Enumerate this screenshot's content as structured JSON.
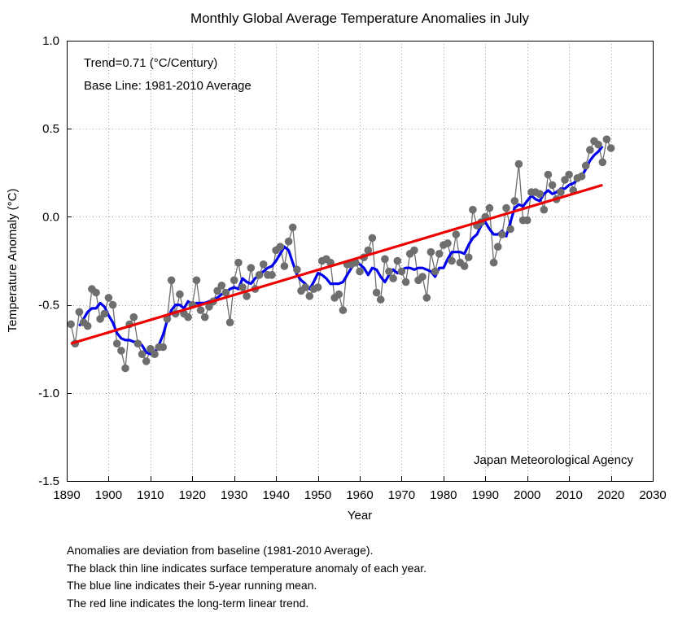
{
  "colors": {
    "annual_points": "#6e6e6e",
    "running_mean": "#0000ee",
    "trend": "#ee0000",
    "grid": "#a0a0a0"
  },
  "notes": [
    "Anomalies are deviation from baseline (1981-2010 Average).",
    "The black thin line indicates surface temperature anomaly of each year.",
    "The blue line indicates their 5-year running mean.",
    "The red line indicates the long-term linear trend."
  ],
  "chart_data": {
    "type": "line",
    "title": "Monthly Global Average Temperature Anomalies in July",
    "xlabel": "Year",
    "ylabel": "Temperature Anomaly (°C)",
    "xlim": [
      1890,
      2030
    ],
    "ylim": [
      -1.5,
      1.0
    ],
    "xticks": [
      1890,
      1900,
      1910,
      1920,
      1930,
      1940,
      1950,
      1960,
      1970,
      1980,
      1990,
      2000,
      2010,
      2020,
      2030
    ],
    "yticks": [
      -1.5,
      -1.0,
      -0.5,
      0.0,
      0.5,
      1.0
    ],
    "ytick_labels": [
      "-1.5",
      "-1.0",
      "-0.5",
      "0.0",
      "0.5",
      "1.0"
    ],
    "grid": true,
    "annotations": {
      "trend": "Trend=0.71 (°C/Century)",
      "baseline": "Base Line: 1981-2010 Average",
      "source": "Japan Meteorological Agency"
    },
    "series": [
      {
        "key": "annual",
        "style": "points-with-thin-line",
        "x": [
          1891,
          1892,
          1893,
          1894,
          1895,
          1896,
          1897,
          1898,
          1899,
          1900,
          1901,
          1902,
          1903,
          1904,
          1905,
          1906,
          1907,
          1908,
          1909,
          1910,
          1911,
          1912,
          1913,
          1914,
          1915,
          1916,
          1917,
          1918,
          1919,
          1920,
          1921,
          1922,
          1923,
          1924,
          1925,
          1926,
          1927,
          1928,
          1929,
          1930,
          1931,
          1932,
          1933,
          1934,
          1935,
          1936,
          1937,
          1938,
          1939,
          1940,
          1941,
          1942,
          1943,
          1944,
          1945,
          1946,
          1947,
          1948,
          1949,
          1950,
          1951,
          1952,
          1953,
          1954,
          1955,
          1956,
          1957,
          1958,
          1959,
          1960,
          1961,
          1962,
          1963,
          1964,
          1965,
          1966,
          1967,
          1968,
          1969,
          1970,
          1971,
          1972,
          1973,
          1974,
          1975,
          1976,
          1977,
          1978,
          1979,
          1980,
          1981,
          1982,
          1983,
          1984,
          1985,
          1986,
          1987,
          1988,
          1989,
          1990,
          1991,
          1992,
          1993,
          1994,
          1995,
          1996,
          1997,
          1998,
          1999,
          2000,
          2001,
          2002,
          2003,
          2004,
          2005,
          2006,
          2007,
          2008,
          2009,
          2010,
          2011,
          2012,
          2013,
          2014,
          2015,
          2016,
          2017,
          2018,
          2019,
          2020
        ],
        "values": [
          -0.61,
          -0.72,
          -0.54,
          -0.6,
          -0.62,
          -0.41,
          -0.43,
          -0.58,
          -0.55,
          -0.46,
          -0.5,
          -0.72,
          -0.76,
          -0.86,
          -0.61,
          -0.57,
          -0.72,
          -0.78,
          -0.82,
          -0.75,
          -0.78,
          -0.74,
          -0.74,
          -0.58,
          -0.36,
          -0.55,
          -0.44,
          -0.55,
          -0.57,
          -0.5,
          -0.36,
          -0.53,
          -0.57,
          -0.51,
          -0.48,
          -0.42,
          -0.39,
          -0.43,
          -0.6,
          -0.36,
          -0.26,
          -0.4,
          -0.45,
          -0.29,
          -0.41,
          -0.33,
          -0.27,
          -0.33,
          -0.33,
          -0.19,
          -0.17,
          -0.28,
          -0.14,
          -0.06,
          -0.3,
          -0.42,
          -0.4,
          -0.45,
          -0.41,
          -0.4,
          -0.25,
          -0.24,
          -0.26,
          -0.46,
          -0.44,
          -0.53,
          -0.27,
          -0.27,
          -0.26,
          -0.31,
          -0.23,
          -0.19,
          -0.12,
          -0.43,
          -0.47,
          -0.24,
          -0.31,
          -0.35,
          -0.25,
          -0.31,
          -0.37,
          -0.21,
          -0.19,
          -0.36,
          -0.34,
          -0.46,
          -0.2,
          -0.31,
          -0.21,
          -0.16,
          -0.15,
          -0.25,
          -0.1,
          -0.26,
          -0.28,
          -0.23,
          0.04,
          -0.05,
          -0.03,
          0.0,
          0.05,
          -0.26,
          -0.17,
          -0.1,
          0.05,
          -0.07,
          0.09,
          0.3,
          -0.02,
          -0.02,
          0.14,
          0.14,
          0.13,
          0.04,
          0.24,
          0.18,
          0.1,
          0.14,
          0.21,
          0.24,
          0.15,
          0.22,
          0.23,
          0.29,
          0.38,
          0.43,
          0.41,
          0.31,
          0.44,
          0.39
        ]
      },
      {
        "key": "running_mean",
        "style": "thick-line",
        "x": [
          1893,
          1894,
          1895,
          1896,
          1897,
          1898,
          1899,
          1900,
          1901,
          1902,
          1903,
          1904,
          1905,
          1906,
          1907,
          1908,
          1909,
          1910,
          1911,
          1912,
          1913,
          1914,
          1915,
          1916,
          1917,
          1918,
          1919,
          1920,
          1921,
          1922,
          1923,
          1924,
          1925,
          1926,
          1927,
          1928,
          1929,
          1930,
          1931,
          1932,
          1933,
          1934,
          1935,
          1936,
          1937,
          1938,
          1939,
          1940,
          1941,
          1942,
          1943,
          1944,
          1945,
          1946,
          1947,
          1948,
          1949,
          1950,
          1951,
          1952,
          1953,
          1954,
          1955,
          1956,
          1957,
          1958,
          1959,
          1960,
          1961,
          1962,
          1963,
          1964,
          1965,
          1966,
          1967,
          1968,
          1969,
          1970,
          1971,
          1972,
          1973,
          1974,
          1975,
          1976,
          1977,
          1978,
          1979,
          1980,
          1981,
          1982,
          1983,
          1984,
          1985,
          1986,
          1987,
          1988,
          1989,
          1990,
          1991,
          1992,
          1993,
          1994,
          1995,
          1996,
          1997,
          1998,
          1999,
          2000,
          2001,
          2002,
          2003,
          2004,
          2005,
          2006,
          2007,
          2008,
          2009,
          2010,
          2011,
          2012,
          2013,
          2014,
          2015,
          2016,
          2017,
          2018
        ],
        "values": [
          -0.62,
          -0.58,
          -0.54,
          -0.52,
          -0.52,
          -0.49,
          -0.51,
          -0.56,
          -0.6,
          -0.66,
          -0.69,
          -0.7,
          -0.7,
          -0.71,
          -0.71,
          -0.73,
          -0.77,
          -0.78,
          -0.77,
          -0.73,
          -0.67,
          -0.59,
          -0.53,
          -0.5,
          -0.5,
          -0.52,
          -0.48,
          -0.5,
          -0.49,
          -0.49,
          -0.49,
          -0.48,
          -0.47,
          -0.46,
          -0.44,
          -0.43,
          -0.41,
          -0.4,
          -0.41,
          -0.35,
          -0.37,
          -0.38,
          -0.35,
          -0.33,
          -0.31,
          -0.29,
          -0.28,
          -0.25,
          -0.21,
          -0.17,
          -0.19,
          -0.26,
          -0.33,
          -0.36,
          -0.38,
          -0.41,
          -0.37,
          -0.32,
          -0.33,
          -0.35,
          -0.38,
          -0.38,
          -0.38,
          -0.37,
          -0.33,
          -0.29,
          -0.26,
          -0.27,
          -0.29,
          -0.33,
          -0.29,
          -0.3,
          -0.34,
          -0.37,
          -0.33,
          -0.3,
          -0.32,
          -0.3,
          -0.29,
          -0.29,
          -0.3,
          -0.29,
          -0.29,
          -0.3,
          -0.31,
          -0.34,
          -0.29,
          -0.29,
          -0.24,
          -0.2,
          -0.2,
          -0.2,
          -0.21,
          -0.16,
          -0.12,
          -0.1,
          -0.05,
          -0.03,
          -0.07,
          -0.1,
          -0.1,
          -0.08,
          -0.11,
          -0.03,
          0.05,
          0.07,
          0.06,
          0.09,
          0.12,
          0.1,
          0.09,
          0.13,
          0.15,
          0.13,
          0.14,
          0.16,
          0.16,
          0.18,
          0.19,
          0.21,
          0.23,
          0.27,
          0.32,
          0.35,
          0.37,
          0.4
        ]
      },
      {
        "key": "trend",
        "style": "thick-line",
        "x": [
          1891,
          2018
        ],
        "values": [
          -0.72,
          0.18
        ]
      }
    ]
  }
}
